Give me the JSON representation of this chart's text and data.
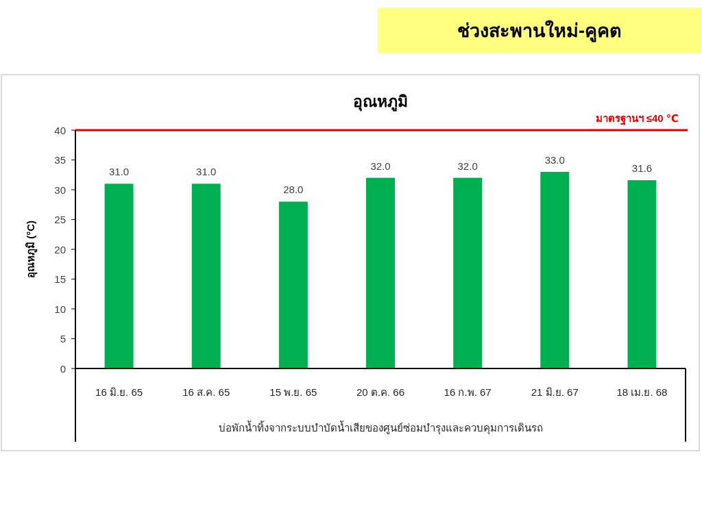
{
  "chart_data": {
    "type": "bar",
    "title": "ช่วงสะพานใหม่-คูคต",
    "subtitle": "อุณหภูมิ",
    "xlabel": "บ่อพักน้ำทิ้งจากระบบบำบัดน้ำเสียของศูนย์ซ่อมบำรุงและควบคุมการเดินรถ",
    "ylabel": "อุณหภูมิ (°C)",
    "categories": [
      "16 มิ.ย. 65",
      "16 ส.ค. 65",
      "15 พ.ย. 65",
      "20 ต.ค. 66",
      "16 ก.พ. 67",
      "21 มิ.ย. 67",
      "18 เม.ย. 68"
    ],
    "values": [
      31.0,
      31.0,
      28.0,
      32.0,
      32.0,
      33.0,
      31.6
    ],
    "value_labels": [
      "31.0",
      "31.0",
      "28.0",
      "32.0",
      "32.0",
      "33.0",
      "31.6"
    ],
    "color": "#00b050",
    "ylim": [
      0,
      40
    ],
    "yticks": [
      0,
      5,
      10,
      15,
      20,
      25,
      30,
      35,
      40
    ],
    "ref_lines": [
      {
        "axis": "y",
        "value": 40,
        "label": "มาตรฐานฯ ≤40 ℃",
        "color": "#e60000"
      }
    ]
  }
}
